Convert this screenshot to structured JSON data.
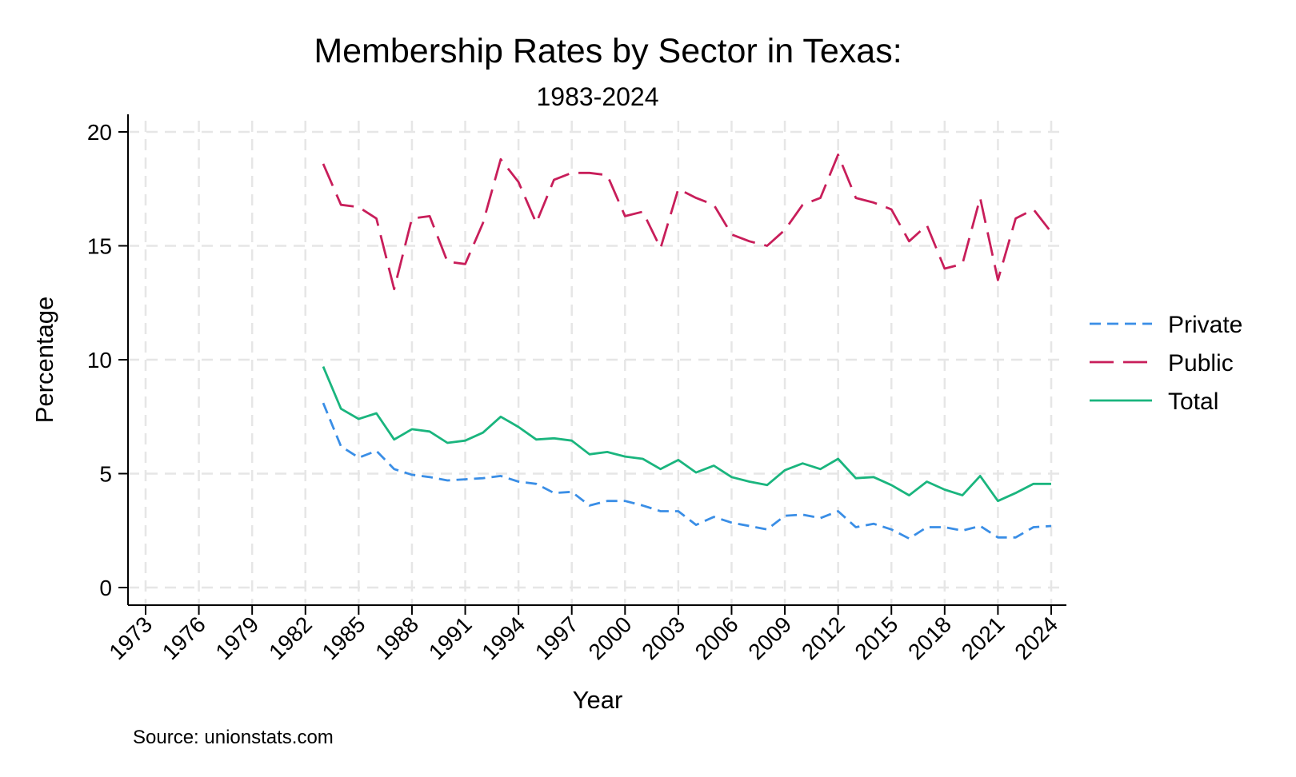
{
  "chart_data": {
    "type": "line",
    "title": "Membership Rates by Sector in Texas:",
    "subtitle": "1983-2024",
    "xlabel": "Year",
    "ylabel": "Percentage",
    "note": "Source: unionstats.com",
    "xlim": [
      1973,
      2024
    ],
    "ylim": [
      0,
      20
    ],
    "x_ticks": [
      1973,
      1976,
      1979,
      1982,
      1985,
      1988,
      1991,
      1994,
      1997,
      2000,
      2003,
      2006,
      2009,
      2012,
      2015,
      2018,
      2021,
      2024
    ],
    "y_ticks": [
      0,
      5,
      10,
      15,
      20
    ],
    "grid": true,
    "legend_position": "right",
    "x": [
      1983,
      1984,
      1985,
      1986,
      1987,
      1988,
      1989,
      1990,
      1991,
      1992,
      1993,
      1994,
      1995,
      1996,
      1997,
      1998,
      1999,
      2000,
      2001,
      2002,
      2003,
      2004,
      2005,
      2006,
      2007,
      2008,
      2009,
      2010,
      2011,
      2012,
      2013,
      2014,
      2015,
      2016,
      2017,
      2018,
      2019,
      2020,
      2021,
      2022,
      2023,
      2024
    ],
    "series": [
      {
        "name": "Private",
        "color": "#3a8ee6",
        "dash": "short",
        "values": [
          8.1,
          6.2,
          5.7,
          6.0,
          5.2,
          4.95,
          4.85,
          4.7,
          4.75,
          4.8,
          4.9,
          4.65,
          4.55,
          4.15,
          4.2,
          3.6,
          3.8,
          3.8,
          3.6,
          3.35,
          3.35,
          2.75,
          3.1,
          2.85,
          2.7,
          2.55,
          3.15,
          3.2,
          3.05,
          3.35,
          2.65,
          2.8,
          2.55,
          2.15,
          2.65,
          2.65,
          2.5,
          2.7,
          2.2,
          2.2,
          2.65,
          2.7
        ]
      },
      {
        "name": "Public",
        "color": "#c81e5a",
        "dash": "long",
        "values": [
          18.6,
          16.8,
          16.7,
          16.2,
          13.1,
          16.2,
          16.3,
          14.3,
          14.2,
          16.0,
          18.8,
          17.8,
          16.0,
          17.9,
          18.2,
          18.2,
          18.1,
          16.3,
          16.5,
          14.9,
          17.5,
          17.1,
          16.8,
          15.5,
          15.2,
          15.0,
          15.7,
          16.8,
          17.1,
          19.0,
          17.1,
          16.9,
          16.6,
          15.2,
          15.9,
          14.0,
          14.2,
          17.1,
          13.5,
          16.2,
          16.6,
          15.6
        ]
      },
      {
        "name": "Total",
        "color": "#1ab57e",
        "dash": "solid",
        "values": [
          9.7,
          7.85,
          7.4,
          7.65,
          6.5,
          6.95,
          6.85,
          6.35,
          6.45,
          6.8,
          7.5,
          7.05,
          6.5,
          6.55,
          6.45,
          5.85,
          5.95,
          5.75,
          5.65,
          5.2,
          5.6,
          5.05,
          5.35,
          4.85,
          4.65,
          4.5,
          5.15,
          5.45,
          5.2,
          5.65,
          4.8,
          4.85,
          4.5,
          4.05,
          4.65,
          4.3,
          4.05,
          4.9,
          3.8,
          4.15,
          4.55,
          4.55
        ]
      }
    ]
  }
}
